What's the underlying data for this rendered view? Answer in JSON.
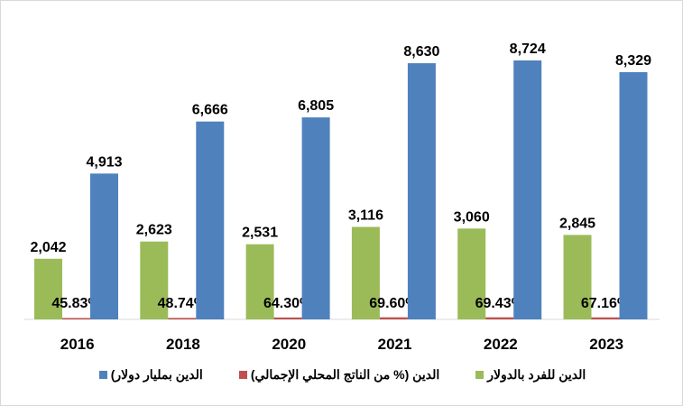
{
  "chart_data": {
    "type": "bar",
    "categories": [
      "2016",
      "2018",
      "2020",
      "2021",
      "2022",
      "2023"
    ],
    "series": [
      {
        "name": "الدين للفرد بالدولار",
        "color": "#9bbb59",
        "values": [
          2042,
          2623,
          2531,
          3116,
          3060,
          2845
        ],
        "labels": [
          "2,042",
          "2,623",
          "2,531",
          "3,116",
          "3,060",
          "2,845"
        ]
      },
      {
        "name": "الدين (% من الناتج المحلي الإجمالي)",
        "color": "#c0504d",
        "values": [
          45.83,
          48.74,
          64.3,
          69.6,
          69.43,
          67.16
        ],
        "labels": [
          "45.83%",
          "48.74%",
          "64.30%",
          "69.60%",
          "69.43%",
          "67.16%"
        ]
      },
      {
        "name": "الدين بمليار دولار)",
        "color": "#4f81bd",
        "values": [
          4913,
          6666,
          6805,
          8630,
          8724,
          8329
        ],
        "labels": [
          "4,913",
          "6,666",
          "6,805",
          "8,630",
          "8,724",
          "8,329"
        ]
      }
    ],
    "ylim": [
      0,
      10000
    ],
    "grid": false,
    "legend": "bottom"
  }
}
